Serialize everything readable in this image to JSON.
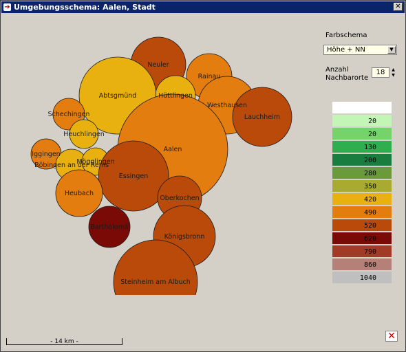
{
  "window": {
    "title": "Umgebungsschema: Aalen, Stadt"
  },
  "controls": {
    "farbschema_label": "Farbschema",
    "farbschema_value": "Höhe + NN",
    "anzahl_label_1": "Anzahl",
    "anzahl_label_2": "Nachbarorte",
    "anzahl_value": "18"
  },
  "legend": [
    {
      "label": "",
      "color": "#ffffff"
    },
    {
      "label": "20",
      "color": "#c3f5b7"
    },
    {
      "label": "20",
      "color": "#74d46a"
    },
    {
      "label": "130",
      "color": "#2eae4f"
    },
    {
      "label": "200",
      "color": "#1a7d40"
    },
    {
      "label": "280",
      "color": "#6b9a3a"
    },
    {
      "label": "350",
      "color": "#a9ab30"
    },
    {
      "label": "420",
      "color": "#e8b10f"
    },
    {
      "label": "490",
      "color": "#e37d10"
    },
    {
      "label": "520",
      "color": "#b94a0a"
    },
    {
      "label": "620",
      "color": "#7a0a05"
    },
    {
      "label": "790",
      "color": "#a23a28"
    },
    {
      "label": "860",
      "color": "#b58077"
    },
    {
      "label": "1040",
      "color": "#bfbfbf"
    }
  ],
  "towns": [
    {
      "name": "Neuler",
      "color": "#b94a0a"
    },
    {
      "name": "Rainau",
      "color": "#e37d10"
    },
    {
      "name": "Abtsgmünd",
      "color": "#e8b10f"
    },
    {
      "name": "Hüttlingen",
      "color": "#e8b10f"
    },
    {
      "name": "Westhausen",
      "color": "#e37d10"
    },
    {
      "name": "Lauchheim",
      "color": "#b94a0a"
    },
    {
      "name": "Schechingen",
      "color": "#e37d10"
    },
    {
      "name": "Heuchlingen",
      "color": "#e8b10f"
    },
    {
      "name": "Aalen",
      "color": "#e37d10"
    },
    {
      "name": "Iggingen",
      "color": "#e37d10"
    },
    {
      "name": "Böbingen an der Rems",
      "color": "#e8b10f"
    },
    {
      "name": "Mögglingen",
      "color": "#e8b10f"
    },
    {
      "name": "Essingen",
      "color": "#b94a0a"
    },
    {
      "name": "Heubach",
      "color": "#e37d10"
    },
    {
      "name": "Oberkochen",
      "color": "#b94a0a"
    },
    {
      "name": "Bartholomä",
      "color": "#7a0a05"
    },
    {
      "name": "Königsbronn",
      "color": "#b94a0a"
    },
    {
      "name": "Steinheim am Albuch",
      "color": "#b94a0a"
    }
  ],
  "scale": {
    "label": "- 14 km -"
  }
}
